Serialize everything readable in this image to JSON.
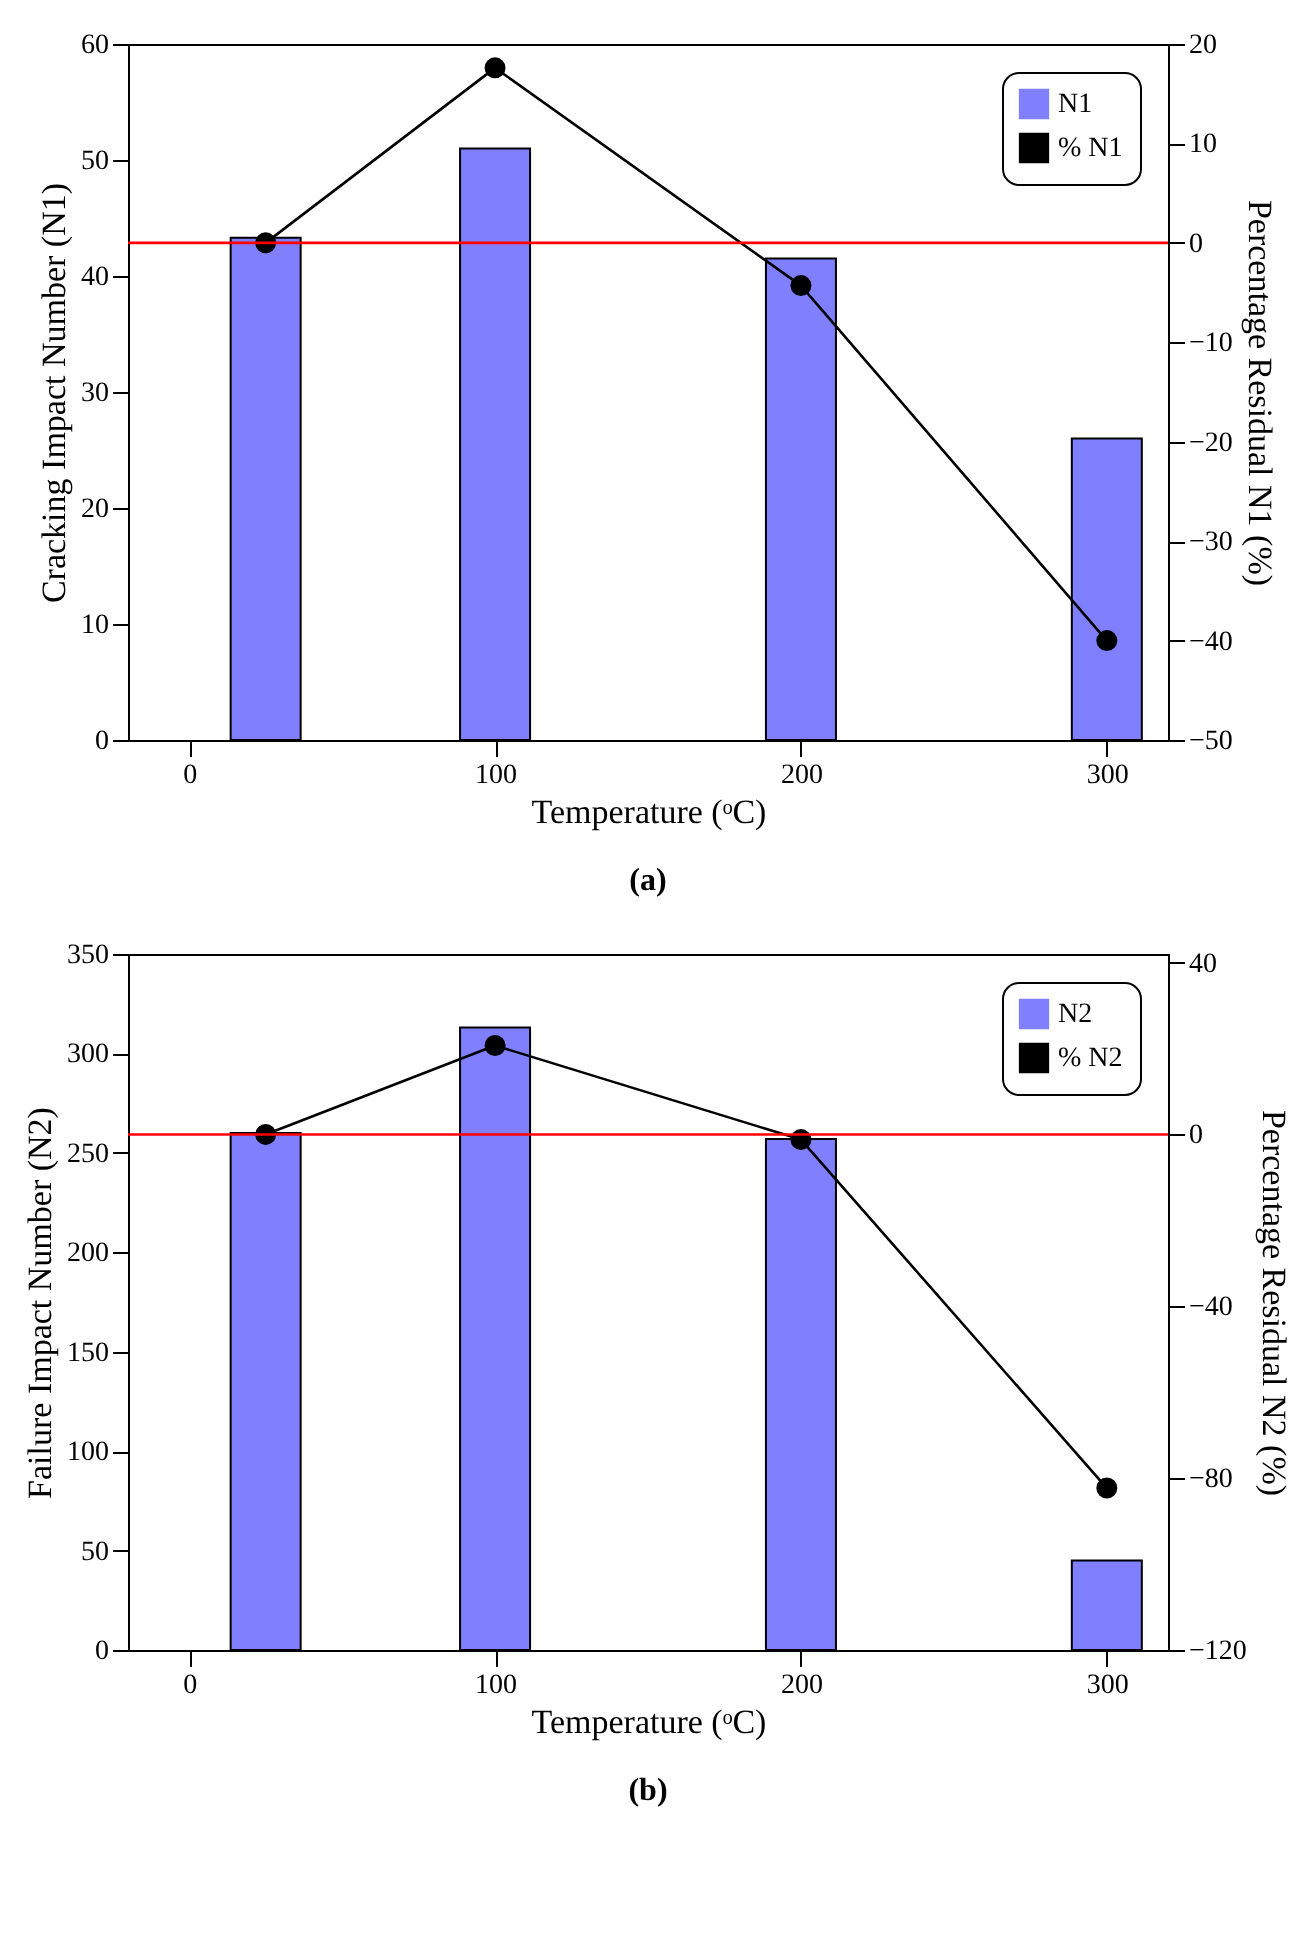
{
  "chart_data": [
    {
      "type": "bar",
      "x": [
        25,
        100,
        200,
        300
      ],
      "xlim": [
        -20,
        320
      ],
      "xticks": [
        0,
        100,
        200,
        300
      ],
      "xlabel": "Temperature (ᵒC)",
      "ylabel": "Cracking Impact Number (N1)",
      "y2label": "Percentage Residual N1 (%)",
      "ylim": [
        0,
        60
      ],
      "yticks": [
        0,
        10,
        20,
        30,
        40,
        50,
        60
      ],
      "y2lim": [
        -50,
        20
      ],
      "y2ticks": [
        -50,
        -40,
        -30,
        -20,
        -10,
        0,
        10,
        20
      ],
      "series": [
        {
          "name": "N1",
          "color": "#8080ff",
          "values": [
            43.3,
            51.0,
            41.5,
            26.0
          ]
        },
        {
          "name": "% N1",
          "type": "line",
          "axis": "y2",
          "color": "#000000",
          "values": [
            0,
            17.6,
            -4.3,
            -40
          ]
        }
      ],
      "ref_lines": [
        {
          "axis": "y2",
          "value": 0,
          "color": "#ff0000"
        }
      ],
      "legend": "top right",
      "marker": "circle",
      "grid": false,
      "annotations": [
        "(a)"
      ]
    },
    {
      "type": "bar",
      "x": [
        25,
        100,
        200,
        300
      ],
      "xlim": [
        -20,
        320
      ],
      "xticks": [
        0,
        100,
        200,
        300
      ],
      "xlabel": "Temperature (ᵒC)",
      "ylabel": "Failure Impact Number (N2)",
      "y2label": "Percentage Residual N2 (%)",
      "ylim": [
        0,
        350
      ],
      "yticks": [
        0,
        50,
        100,
        150,
        200,
        250,
        300,
        350
      ],
      "y2lim": [
        -120,
        42
      ],
      "y2ticks": [
        -120,
        -80,
        -40,
        0,
        40
      ],
      "series": [
        {
          "name": "N2",
          "color": "#8080ff",
          "values": [
            260,
            313,
            257,
            45
          ]
        },
        {
          "name": "% N2",
          "type": "line",
          "axis": "y2",
          "color": "#000000",
          "values": [
            0,
            20.7,
            -1.2,
            -82.3
          ]
        }
      ],
      "ref_lines": [
        {
          "axis": "y2",
          "value": 0,
          "color": "#ff0000"
        }
      ],
      "legend": "top right",
      "marker": "circle",
      "grid": false,
      "annotations": [
        "(b)"
      ]
    }
  ]
}
